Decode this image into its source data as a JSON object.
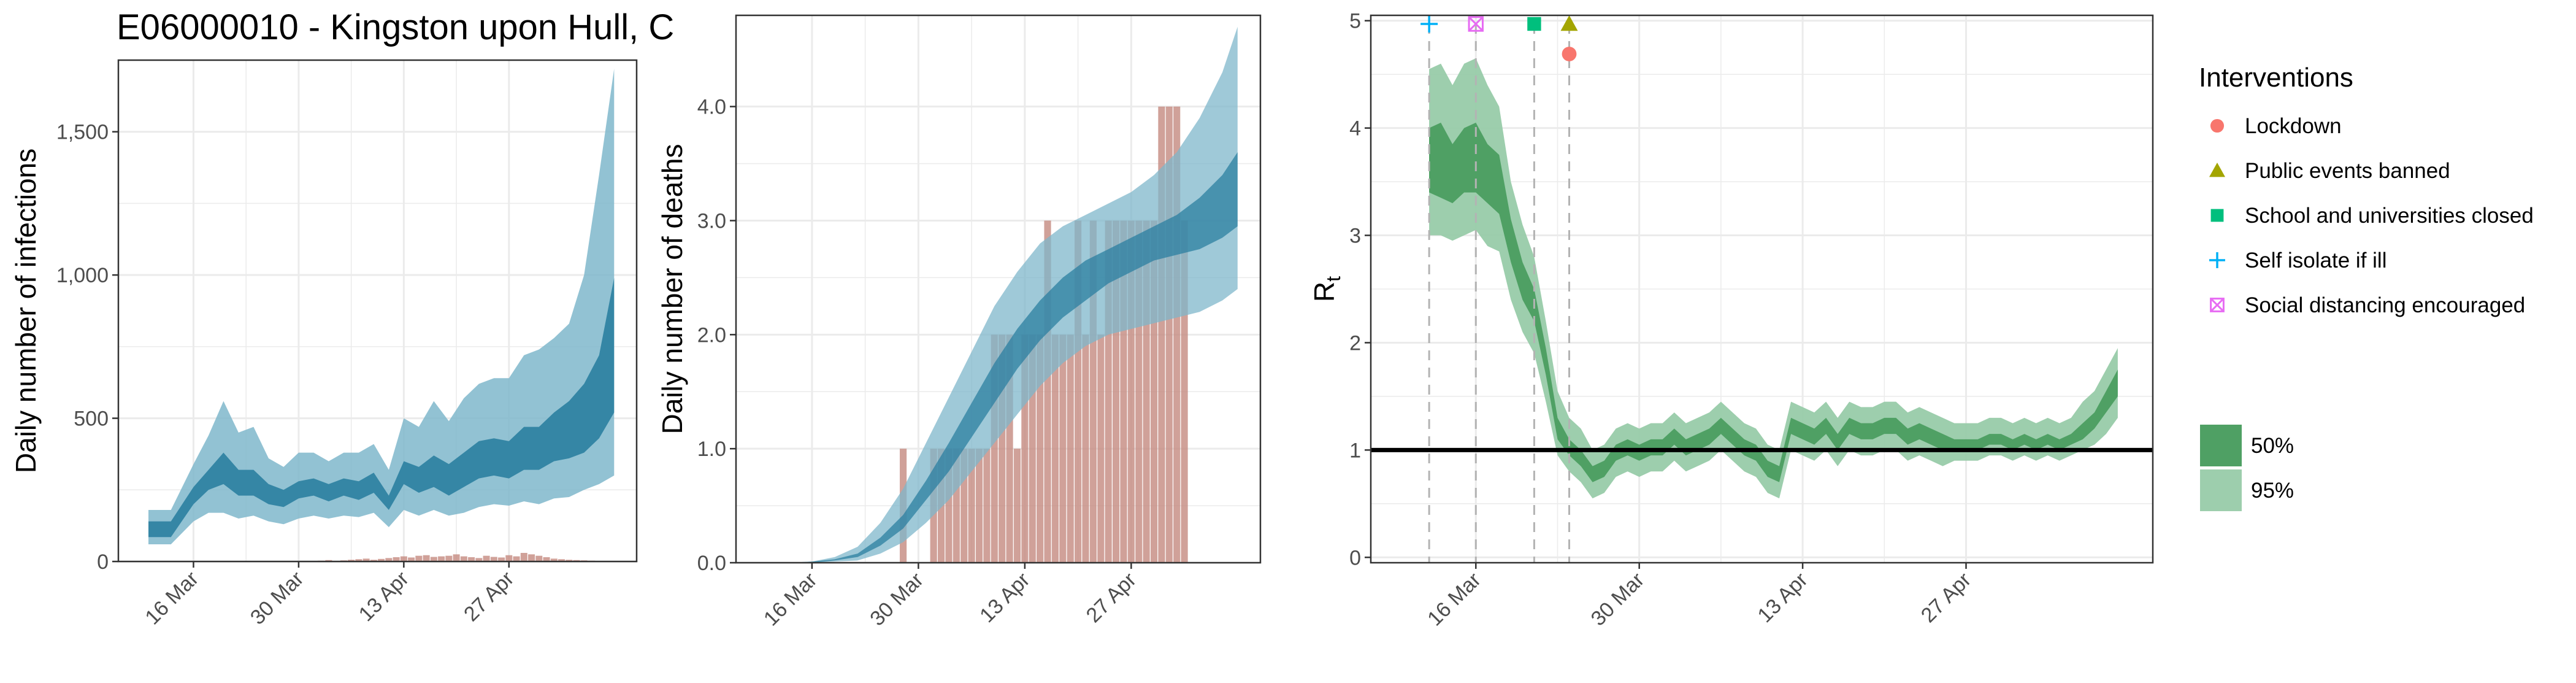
{
  "title": "E06000010 - Kingston upon Hull, C",
  "colors": {
    "ci50_blue": "#2b7fa0",
    "ci95_blue": "#7fb7cb",
    "bars": "#c48a80",
    "ci50_green": "#4fa064",
    "ci95_green": "#98cba9",
    "gridline": "#ebebeb",
    "lockdown": "#f8766d",
    "public_events": "#a3a500",
    "schools": "#00bf7d",
    "self_isolate": "#00b0f6",
    "social_distancing": "#e76bf3"
  },
  "chart_data": [
    {
      "type": "area",
      "ylabel": "Daily number of infections",
      "ylim": [
        0,
        1750
      ],
      "yticks": [
        0,
        500,
        1000,
        1500
      ],
      "ytick_labels": [
        "0",
        "500",
        "1,000",
        "1,500"
      ],
      "xlim": [
        "2020-03-06",
        "2020-05-14"
      ],
      "xticks": [
        "2020-03-16",
        "2020-03-30",
        "2020-04-13",
        "2020-04-27"
      ],
      "xtick_labels": [
        "16 Mar",
        "30 Mar",
        "13 Apr",
        "27 Apr"
      ],
      "grid": true,
      "bars": {
        "start": "2020-04-02",
        "values": [
          3,
          5,
          2,
          4,
          6,
          8,
          10,
          6,
          9,
          12,
          15,
          18,
          14,
          20,
          22,
          16,
          18,
          20,
          25,
          18,
          15,
          12,
          20,
          16,
          14,
          22,
          18,
          30,
          25,
          20,
          15,
          10,
          8,
          6,
          5,
          4,
          3,
          2
        ]
      },
      "bands": {
        "x": [
          "2020-03-10",
          "2020-03-13",
          "2020-03-16",
          "2020-03-18",
          "2020-03-20",
          "2020-03-22",
          "2020-03-24",
          "2020-03-26",
          "2020-03-28",
          "2020-03-30",
          "2020-04-01",
          "2020-04-03",
          "2020-04-05",
          "2020-04-07",
          "2020-04-09",
          "2020-04-11",
          "2020-04-13",
          "2020-04-15",
          "2020-04-17",
          "2020-04-19",
          "2020-04-21",
          "2020-04-23",
          "2020-04-25",
          "2020-04-27",
          "2020-04-29",
          "2020-05-01",
          "2020-05-03",
          "2020-05-05",
          "2020-05-07",
          "2020-05-09",
          "2020-05-11"
        ],
        "lo95": [
          60,
          60,
          140,
          170,
          170,
          150,
          160,
          140,
          130,
          150,
          160,
          150,
          160,
          155,
          170,
          120,
          180,
          160,
          180,
          160,
          170,
          190,
          200,
          195,
          210,
          200,
          220,
          225,
          250,
          270,
          300
        ],
        "lo50": [
          85,
          85,
          200,
          250,
          270,
          230,
          230,
          200,
          190,
          220,
          230,
          210,
          230,
          215,
          240,
          180,
          270,
          240,
          260,
          230,
          260,
          290,
          300,
          290,
          320,
          320,
          350,
          360,
          380,
          430,
          520
        ],
        "hi50": [
          140,
          140,
          260,
          320,
          380,
          320,
          320,
          270,
          250,
          280,
          290,
          270,
          290,
          280,
          310,
          230,
          350,
          330,
          370,
          340,
          380,
          420,
          430,
          420,
          470,
          470,
          520,
          560,
          620,
          720,
          990
        ],
        "hi95": [
          180,
          180,
          340,
          440,
          560,
          450,
          470,
          360,
          330,
          380,
          380,
          350,
          380,
          380,
          410,
          320,
          500,
          470,
          560,
          490,
          570,
          620,
          640,
          640,
          720,
          740,
          780,
          830,
          1000,
          1350,
          1720
        ]
      }
    },
    {
      "type": "area",
      "ylabel": "Daily number of deaths",
      "ylim": [
        0,
        4.8
      ],
      "yticks": [
        0,
        1,
        2,
        3,
        4
      ],
      "ytick_labels": [
        "0.0",
        "1.0",
        "2.0",
        "3.0",
        "4.0"
      ],
      "xlim": [
        "2020-03-06",
        "2020-05-14"
      ],
      "xticks": [
        "2020-03-16",
        "2020-03-30",
        "2020-04-13",
        "2020-04-27"
      ],
      "xtick_labels": [
        "16 Mar",
        "30 Mar",
        "13 Apr",
        "27 Apr"
      ],
      "grid": true,
      "bars": {
        "start": "2020-03-28",
        "values": [
          1,
          0,
          0,
          0,
          1,
          1,
          1,
          1,
          1,
          1,
          1,
          1,
          2,
          2,
          2,
          1,
          2,
          2,
          2,
          3,
          2,
          2,
          2,
          3,
          2,
          3,
          2,
          3,
          3,
          3,
          3,
          3,
          3,
          3,
          4,
          4,
          4,
          3
        ]
      },
      "bands": {
        "x": [
          "2020-03-13",
          "2020-03-16",
          "2020-03-19",
          "2020-03-22",
          "2020-03-25",
          "2020-03-28",
          "2020-03-31",
          "2020-04-03",
          "2020-04-06",
          "2020-04-09",
          "2020-04-12",
          "2020-04-15",
          "2020-04-18",
          "2020-04-21",
          "2020-04-24",
          "2020-04-27",
          "2020-04-30",
          "2020-05-03",
          "2020-05-06",
          "2020-05-09",
          "2020-05-11"
        ],
        "lo95": [
          0,
          0,
          0.01,
          0.02,
          0.08,
          0.18,
          0.35,
          0.55,
          0.8,
          1.05,
          1.3,
          1.55,
          1.75,
          1.9,
          2.0,
          2.05,
          2.1,
          2.15,
          2.2,
          2.3,
          2.4
        ],
        "lo50": [
          0,
          0,
          0.02,
          0.05,
          0.15,
          0.3,
          0.55,
          0.8,
          1.1,
          1.4,
          1.7,
          1.95,
          2.15,
          2.3,
          2.45,
          2.55,
          2.65,
          2.7,
          2.75,
          2.85,
          2.95
        ],
        "hi50": [
          0,
          0.01,
          0.03,
          0.08,
          0.22,
          0.42,
          0.72,
          1.05,
          1.4,
          1.75,
          2.05,
          2.3,
          2.5,
          2.65,
          2.75,
          2.85,
          2.95,
          3.05,
          3.2,
          3.4,
          3.6
        ],
        "hi95": [
          0,
          0.01,
          0.05,
          0.14,
          0.35,
          0.65,
          1.05,
          1.45,
          1.85,
          2.25,
          2.55,
          2.8,
          2.95,
          3.05,
          3.15,
          3.25,
          3.4,
          3.6,
          3.9,
          4.3,
          4.7
        ]
      }
    },
    {
      "type": "area",
      "ylabel": "R",
      "ylabel_sub": "t",
      "ylim": [
        -0.05,
        5.05
      ],
      "yticks": [
        0,
        1,
        2,
        3,
        4,
        5
      ],
      "ytick_labels": [
        "0",
        "1",
        "2",
        "3",
        "4",
        "5"
      ],
      "xlim": [
        "2020-03-07",
        "2020-05-13"
      ],
      "xticks": [
        "2020-03-16",
        "2020-03-30",
        "2020-04-13",
        "2020-04-27"
      ],
      "xtick_labels": [
        "16 Mar",
        "30 Mar",
        "13 Apr",
        "27 Apr"
      ],
      "grid": true,
      "reference_line": 1,
      "bands": {
        "x": [
          "2020-03-12",
          "2020-03-13",
          "2020-03-14",
          "2020-03-15",
          "2020-03-16",
          "2020-03-17",
          "2020-03-18",
          "2020-03-19",
          "2020-03-20",
          "2020-03-21",
          "2020-03-22",
          "2020-03-23",
          "2020-03-24",
          "2020-03-25",
          "2020-03-26",
          "2020-03-27",
          "2020-03-28",
          "2020-03-29",
          "2020-03-30",
          "2020-03-31",
          "2020-04-01",
          "2020-04-02",
          "2020-04-03",
          "2020-04-04",
          "2020-04-05",
          "2020-04-06",
          "2020-04-07",
          "2020-04-08",
          "2020-04-09",
          "2020-04-10",
          "2020-04-11",
          "2020-04-12",
          "2020-04-13",
          "2020-04-14",
          "2020-04-15",
          "2020-04-16",
          "2020-04-17",
          "2020-04-18",
          "2020-04-19",
          "2020-04-20",
          "2020-04-21",
          "2020-04-22",
          "2020-04-23",
          "2020-04-24",
          "2020-04-25",
          "2020-04-26",
          "2020-04-27",
          "2020-04-28",
          "2020-04-29",
          "2020-04-30",
          "2020-05-01",
          "2020-05-02",
          "2020-05-03",
          "2020-05-04",
          "2020-05-05",
          "2020-05-06",
          "2020-05-07",
          "2020-05-08",
          "2020-05-09",
          "2020-05-10"
        ],
        "lo95": [
          3.0,
          3.0,
          2.95,
          3.0,
          3.05,
          2.9,
          2.85,
          2.4,
          2.1,
          1.9,
          1.45,
          0.95,
          0.8,
          0.7,
          0.55,
          0.6,
          0.75,
          0.8,
          0.75,
          0.8,
          0.8,
          0.9,
          0.8,
          0.85,
          0.9,
          1.0,
          0.9,
          0.8,
          0.75,
          0.6,
          0.55,
          1.0,
          0.95,
          0.9,
          1.0,
          0.85,
          1.0,
          0.95,
          0.95,
          1.0,
          1.0,
          0.9,
          0.95,
          0.9,
          0.85,
          0.9,
          0.9,
          0.9,
          0.95,
          0.95,
          0.9,
          0.95,
          0.9,
          0.95,
          0.9,
          0.95,
          1.0,
          1.05,
          1.15,
          1.3
        ],
        "lo50": [
          3.4,
          3.35,
          3.3,
          3.4,
          3.4,
          3.3,
          3.2,
          2.75,
          2.4,
          2.2,
          1.7,
          1.1,
          0.95,
          0.85,
          0.7,
          0.75,
          0.9,
          0.95,
          0.9,
          0.95,
          0.95,
          1.05,
          0.95,
          1.0,
          1.05,
          1.15,
          1.05,
          0.95,
          0.9,
          0.75,
          0.7,
          1.15,
          1.1,
          1.05,
          1.15,
          1.0,
          1.15,
          1.1,
          1.1,
          1.15,
          1.15,
          1.05,
          1.1,
          1.05,
          1.0,
          1.0,
          1.0,
          1.0,
          1.05,
          1.05,
          1.0,
          1.05,
          1.0,
          1.05,
          1.0,
          1.05,
          1.1,
          1.2,
          1.35,
          1.5
        ],
        "hi50": [
          4.0,
          4.05,
          3.85,
          4.0,
          4.05,
          3.85,
          3.75,
          3.15,
          2.75,
          2.5,
          1.95,
          1.3,
          1.1,
          1.0,
          0.85,
          0.9,
          1.05,
          1.1,
          1.05,
          1.1,
          1.1,
          1.2,
          1.1,
          1.15,
          1.2,
          1.3,
          1.2,
          1.1,
          1.05,
          0.9,
          0.85,
          1.3,
          1.25,
          1.2,
          1.3,
          1.15,
          1.3,
          1.25,
          1.25,
          1.3,
          1.3,
          1.2,
          1.25,
          1.2,
          1.15,
          1.1,
          1.1,
          1.1,
          1.15,
          1.15,
          1.1,
          1.15,
          1.1,
          1.15,
          1.1,
          1.15,
          1.25,
          1.35,
          1.55,
          1.75
        ],
        "hi95": [
          4.55,
          4.6,
          4.4,
          4.6,
          4.65,
          4.4,
          4.2,
          3.5,
          3.1,
          2.8,
          2.2,
          1.55,
          1.3,
          1.2,
          1.0,
          1.05,
          1.2,
          1.25,
          1.2,
          1.25,
          1.25,
          1.35,
          1.25,
          1.3,
          1.35,
          1.45,
          1.35,
          1.25,
          1.2,
          1.05,
          1.0,
          1.45,
          1.4,
          1.35,
          1.45,
          1.3,
          1.45,
          1.4,
          1.4,
          1.45,
          1.45,
          1.35,
          1.4,
          1.35,
          1.3,
          1.25,
          1.25,
          1.25,
          1.3,
          1.3,
          1.25,
          1.3,
          1.25,
          1.3,
          1.25,
          1.3,
          1.45,
          1.55,
          1.75,
          1.95
        ]
      },
      "interventions": [
        {
          "name": "Self isolate if ill",
          "date": "2020-03-12",
          "y": 4.97,
          "shape": "plus",
          "color_key": "self_isolate"
        },
        {
          "name": "Social distancing encouraged",
          "date": "2020-03-16",
          "y": 4.97,
          "shape": "square-x",
          "color_key": "social_distancing"
        },
        {
          "name": "School and universities closed",
          "date": "2020-03-21",
          "y": 4.97,
          "shape": "square",
          "color_key": "schools"
        },
        {
          "name": "Public events banned",
          "date": "2020-03-24",
          "y": 4.97,
          "shape": "triangle",
          "color_key": "public_events"
        },
        {
          "name": "Lockdown",
          "date": "2020-03-24",
          "y": 4.69,
          "shape": "circle",
          "color_key": "lockdown"
        }
      ]
    }
  ],
  "legend": {
    "title": "Interventions",
    "items": [
      {
        "label": "Lockdown",
        "shape": "circle",
        "color_key": "lockdown"
      },
      {
        "label": "Public events banned",
        "shape": "triangle",
        "color_key": "public_events"
      },
      {
        "label": "School and universities closed",
        "shape": "square",
        "color_key": "schools"
      },
      {
        "label": "Self isolate if ill",
        "shape": "plus",
        "color_key": "self_isolate"
      },
      {
        "label": "Social distancing encouraged",
        "shape": "square-x",
        "color_key": "social_distancing"
      }
    ],
    "ci_items": [
      {
        "label": "50%",
        "color_key": "ci50_green"
      },
      {
        "label": "95%",
        "color_key": "ci95_green"
      }
    ]
  }
}
